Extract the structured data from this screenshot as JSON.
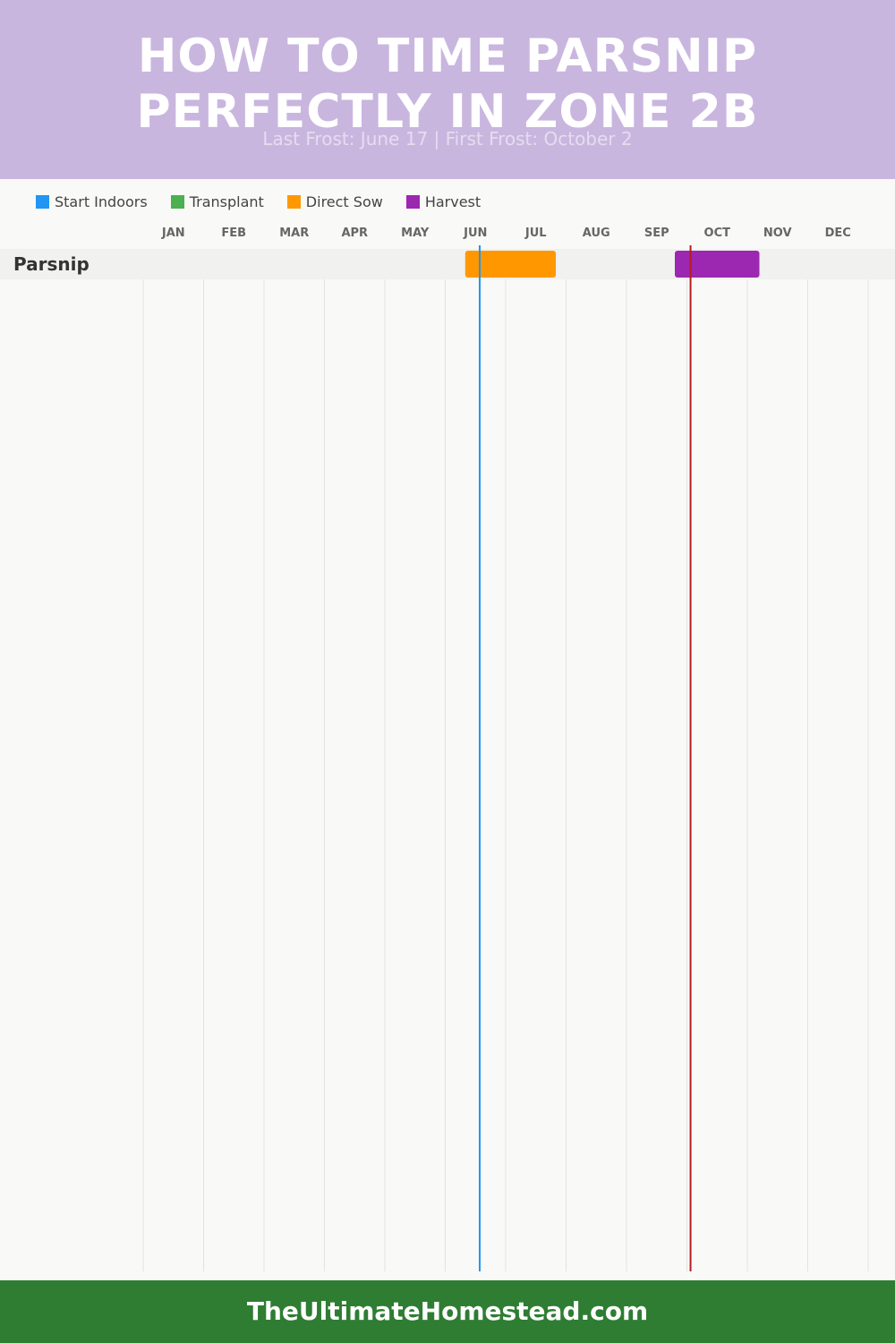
{
  "header": {
    "title_line1": "HOW TO TIME PARSNIP",
    "title_line2": "PERFECTLY IN ZONE 2B",
    "subtitle": "Last Frost: June 17 | First Frost: October 2"
  },
  "footer": {
    "site": "TheUltimateHomestead.com"
  },
  "colors": {
    "header_bg": "#c9b6df",
    "footer_bg": "#2e7d32",
    "start_indoors": "#2196f3",
    "transplant": "#4caf50",
    "direct_sow": "#ff9800",
    "harvest": "#9c27b0",
    "last_frost_line": "#2196f3",
    "first_frost_line": "#b71c1c"
  },
  "chart_data": {
    "type": "gantt",
    "title": "HOW TO TIME PARSNIP PERFECTLY IN ZONE 2B",
    "subtitle": "Last Frost: June 17 | First Frost: October 2",
    "months": [
      "JAN",
      "FEB",
      "MAR",
      "APR",
      "MAY",
      "JUN",
      "JUL",
      "AUG",
      "SEP",
      "OCT",
      "NOV",
      "DEC"
    ],
    "legend": [
      {
        "name": "Start Indoors",
        "color": "#2196f3"
      },
      {
        "name": "Transplant",
        "color": "#4caf50"
      },
      {
        "name": "Direct Sow",
        "color": "#ff9800"
      },
      {
        "name": "Harvest",
        "color": "#9c27b0"
      }
    ],
    "legend_position": "top-left",
    "grid": true,
    "crops": [
      {
        "name": "Parsnip",
        "tasks": [
          {
            "type": "Direct Sow",
            "start_month": 5.33,
            "end_month": 6.83
          },
          {
            "type": "Harvest",
            "start_month": 8.8,
            "end_month": 10.2
          }
        ]
      }
    ],
    "frost_lines": [
      {
        "label": "Last Frost",
        "date": "June 17",
        "month_value": 5.57
      },
      {
        "label": "First Frost",
        "date": "October 2",
        "month_value": 9.06
      }
    ]
  }
}
